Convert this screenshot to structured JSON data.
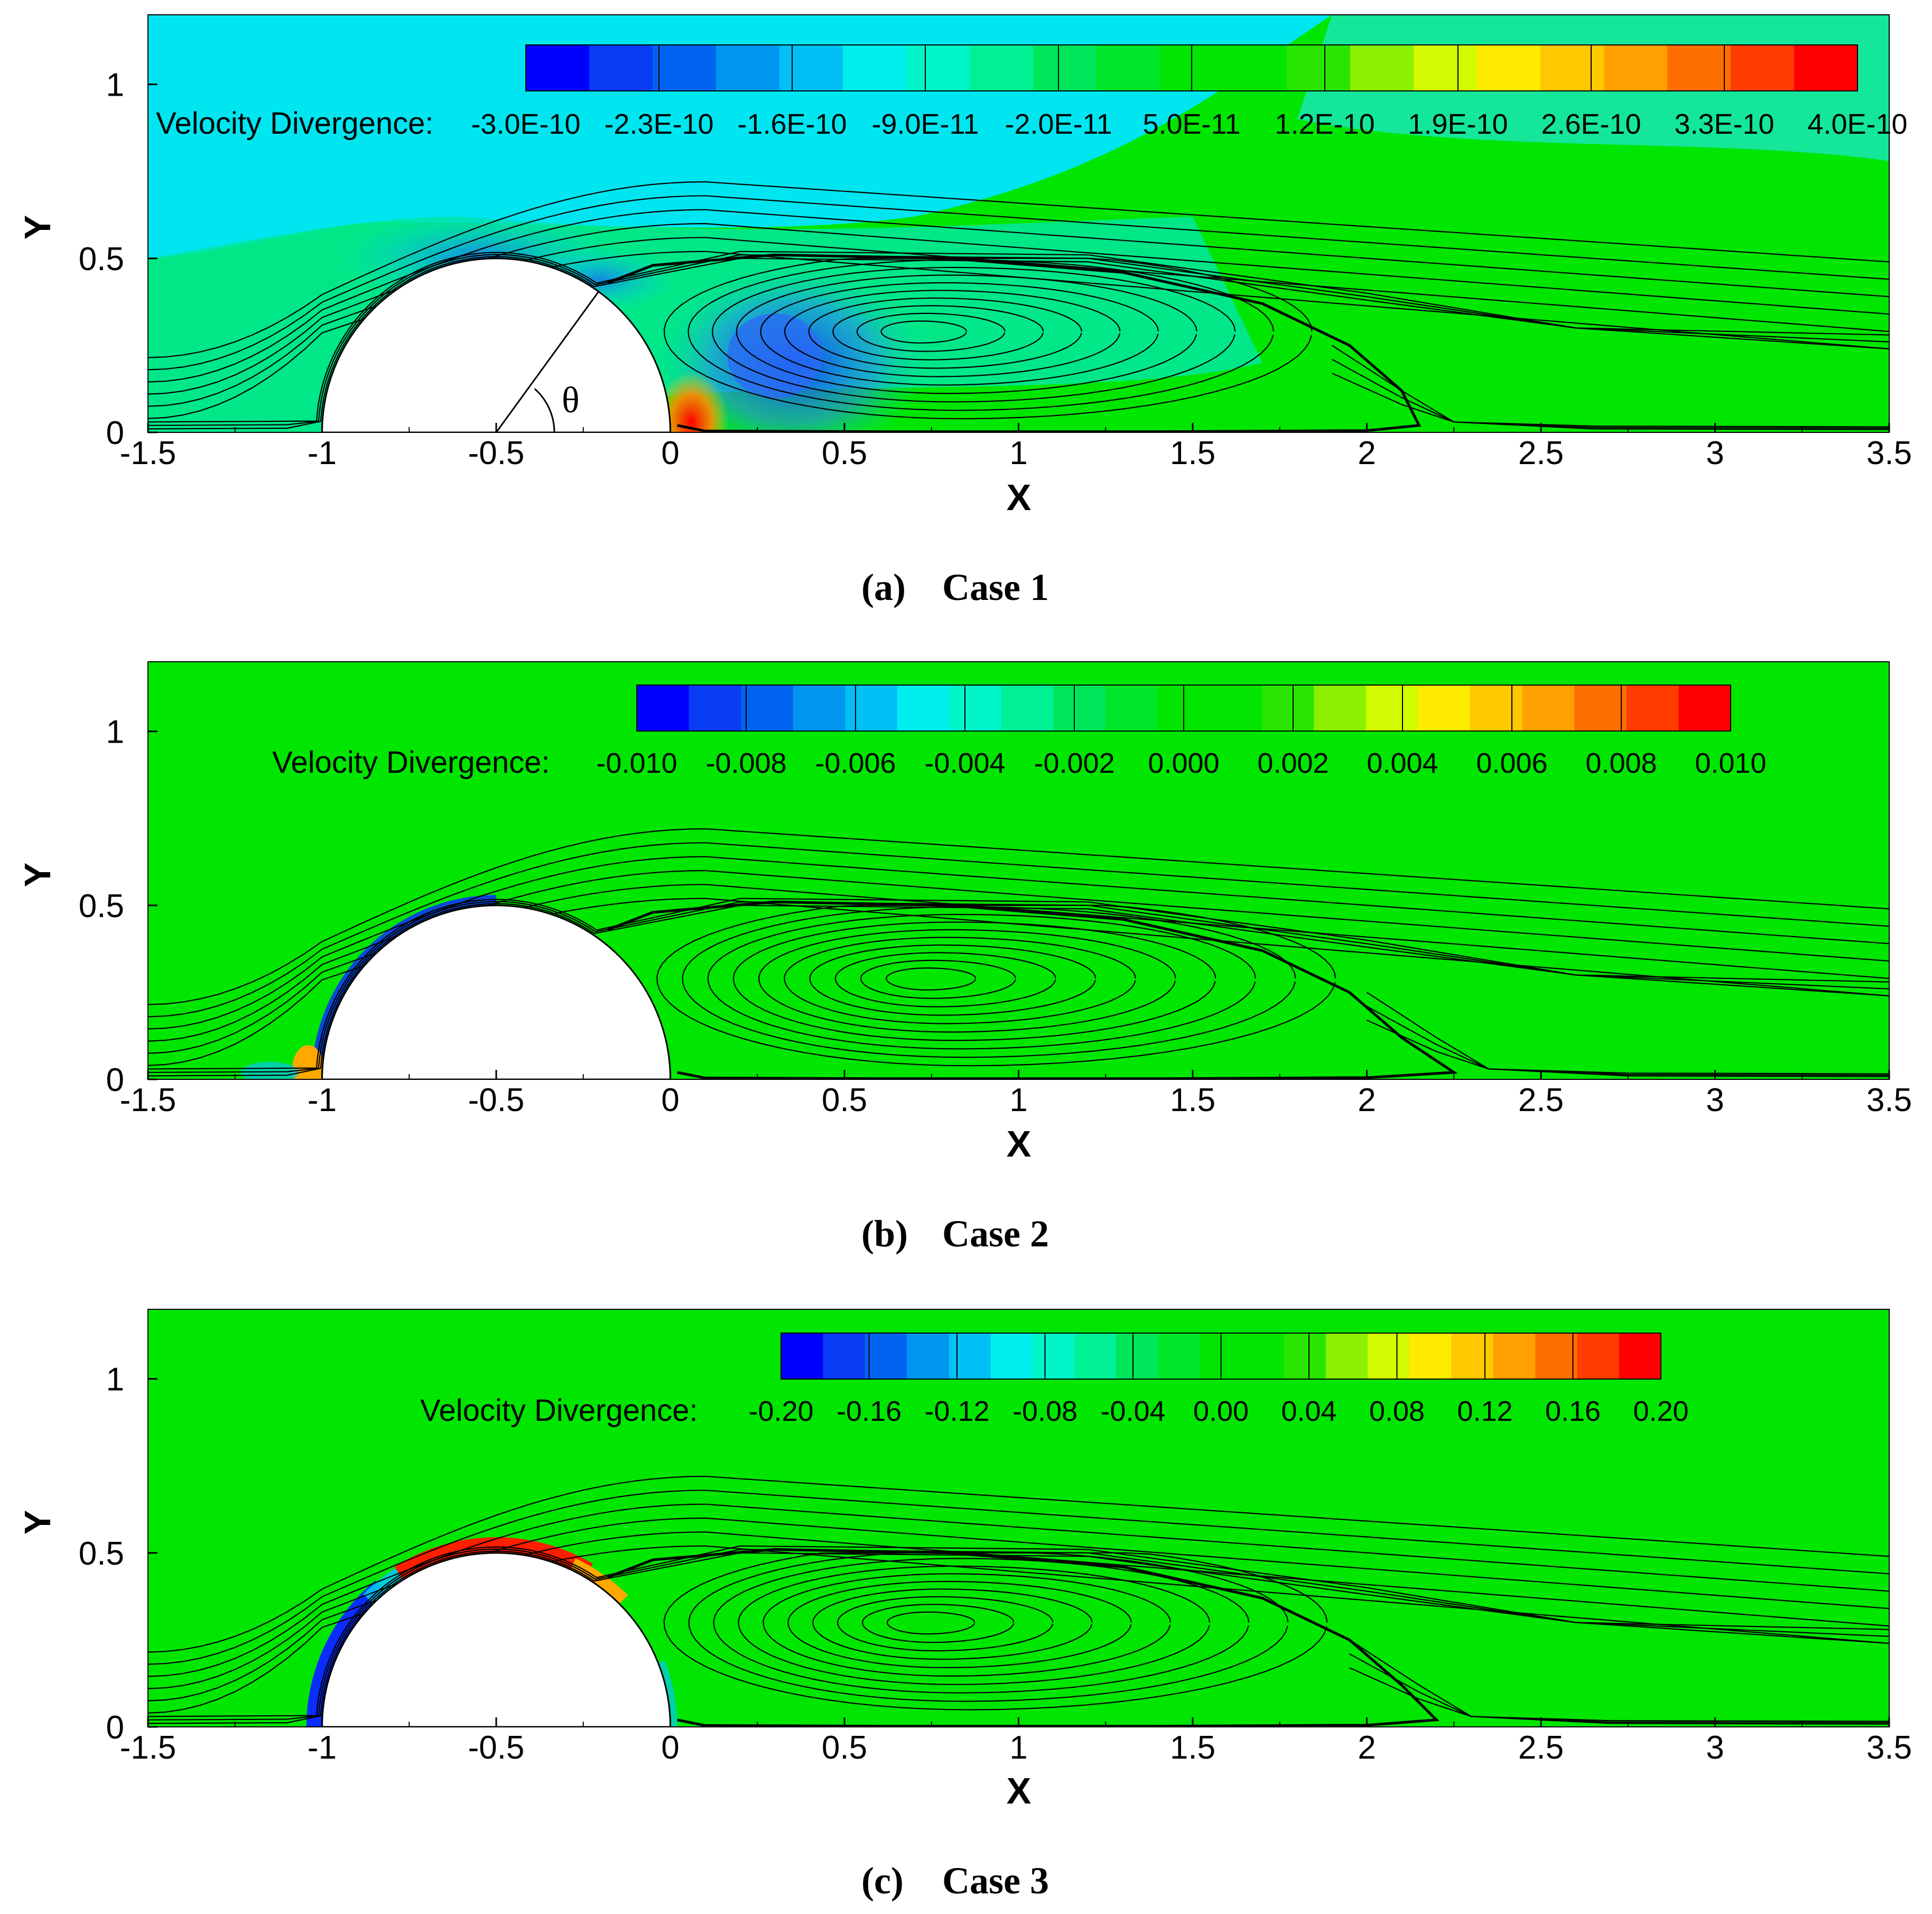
{
  "chart_data": [
    {
      "type": "contour",
      "panel": "(a)",
      "case": "Case 1",
      "colorbar_title": "Velocity Divergence:",
      "colorbar_labels": [
        "-3.0E-10",
        "-2.3E-10",
        "-1.6E-10",
        "-9.0E-11",
        "-2.0E-11",
        "5.0E-11",
        "1.2E-10",
        "1.9E-10",
        "2.6E-10",
        "3.3E-10",
        "4.0E-10"
      ],
      "xlabel": "X",
      "ylabel": "Y",
      "xlim": [
        -1.5,
        3.5
      ],
      "ylim": [
        0,
        1.2
      ],
      "xticks": [
        "-1.5",
        "-1",
        "-0.5",
        "0",
        "0.5",
        "1",
        "1.5",
        "2",
        "2.5",
        "3",
        "3.5"
      ],
      "yticks": [
        "0",
        "0.5",
        "1"
      ],
      "annotation": "θ",
      "cylinder": {
        "center": [
          -0.5,
          0
        ],
        "radius": 0.5
      },
      "vortex_center": [
        0.7,
        0.29
      ],
      "reattachment_x": 2.15
    },
    {
      "type": "contour",
      "panel": "(b)",
      "case": "Case 2",
      "colorbar_title": "Velocity Divergence:",
      "colorbar_labels": [
        "-0.010",
        "-0.008",
        "-0.006",
        "-0.004",
        "-0.002",
        "0.000",
        "0.002",
        "0.004",
        "0.006",
        "0.008",
        "0.010"
      ],
      "xlabel": "X",
      "ylabel": "Y",
      "xlim": [
        -1.5,
        3.5
      ],
      "ylim": [
        0,
        1.2
      ],
      "xticks": [
        "-1.5",
        "-1",
        "-0.5",
        "0",
        "0.5",
        "1",
        "1.5",
        "2",
        "2.5",
        "3",
        "3.5"
      ],
      "yticks": [
        "0",
        "0.5",
        "1"
      ],
      "cylinder": {
        "center": [
          -0.5,
          0
        ],
        "radius": 0.5
      },
      "vortex_center": [
        0.72,
        0.29
      ],
      "reattachment_x": 2.25
    },
    {
      "type": "contour",
      "panel": "(c)",
      "case": "Case 3",
      "colorbar_title": "Velocity Divergence:",
      "colorbar_labels": [
        "-0.20",
        "-0.16",
        "-0.12",
        "-0.08",
        "-0.04",
        "0.00",
        "0.04",
        "0.08",
        "0.12",
        "0.16",
        "0.20"
      ],
      "xlabel": "X",
      "ylabel": "Y",
      "xlim": [
        -1.5,
        3.5
      ],
      "ylim": [
        0,
        1.2
      ],
      "xticks": [
        "-1.5",
        "-1",
        "-0.5",
        "0",
        "0.5",
        "1",
        "1.5",
        "2",
        "2.5",
        "3",
        "3.5"
      ],
      "yticks": [
        "0",
        "0.5",
        "1"
      ],
      "cylinder": {
        "center": [
          -0.5,
          0
        ],
        "radius": 0.5
      },
      "vortex_center": [
        0.72,
        0.3
      ],
      "reattachment_x": 2.2
    }
  ],
  "colormap": [
    "#0000ff",
    "#0a3cf5",
    "#0064f0",
    "#0096f0",
    "#00c0f5",
    "#00eeee",
    "#00f5c8",
    "#00f096",
    "#00e65a",
    "#00e628",
    "#00e600",
    "#00e600",
    "#28e600",
    "#8cf000",
    "#d2fa00",
    "#ffeb00",
    "#ffc800",
    "#ffa000",
    "#ff6e00",
    "#ff3c00",
    "#ff0000"
  ],
  "field_colors": {
    "background": "#00e600",
    "case1_top": "#00e6f0",
    "case1_upper_right": "#14e69a",
    "case1_mid": "#00e6a0",
    "neg_blob": "#2a6df2",
    "neg_strong": "#0032ff",
    "pos_blob": "#ff2a00",
    "ring_red": "#ff1e00",
    "ring_orange": "#ffa800",
    "ring_blue": "#0a2cff",
    "ring_cyan": "#00c8f0"
  }
}
